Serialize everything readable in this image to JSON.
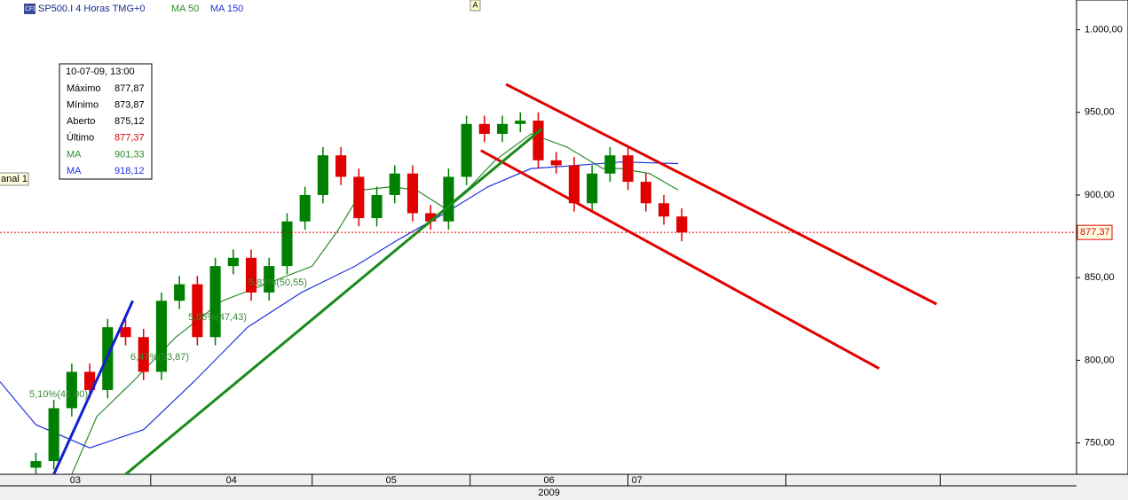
{
  "chart_data": {
    "type": "candlestick",
    "logo": "CFD",
    "title": "SP500.I 4 Horas TMG+0",
    "marker": "A",
    "channel_label": "anal 1",
    "up_color": "#008000",
    "down_color": "#e00000",
    "x": [
      10,
      15,
      20,
      25,
      30,
      35,
      40,
      45,
      50,
      55,
      60,
      65,
      70,
      75,
      80,
      85,
      90,
      95,
      100,
      105,
      110,
      115,
      120,
      125,
      130,
      135,
      140,
      145,
      150,
      155,
      160,
      165,
      170,
      175,
      180,
      185,
      190
    ],
    "open": [
      735,
      739,
      771,
      793,
      782,
      820,
      814,
      793,
      836,
      846,
      814,
      857,
      862,
      841,
      857,
      884,
      900,
      924,
      911,
      886,
      900,
      913,
      889,
      884,
      911,
      943,
      937,
      943,
      945,
      921,
      918,
      895,
      913,
      924,
      908,
      895,
      887
    ],
    "high": [
      744,
      776,
      798,
      798,
      825,
      825,
      819,
      841,
      851,
      851,
      862,
      867,
      867,
      862,
      889,
      905,
      929,
      929,
      916,
      905,
      918,
      918,
      894,
      916,
      948,
      948,
      948,
      950,
      950,
      926,
      923,
      918,
      929,
      929,
      913,
      900,
      892
    ],
    "low": [
      730,
      734,
      766,
      777,
      777,
      809,
      788,
      788,
      831,
      809,
      809,
      852,
      836,
      836,
      852,
      879,
      895,
      906,
      881,
      881,
      895,
      884,
      879,
      879,
      906,
      932,
      932,
      938,
      916,
      913,
      890,
      890,
      908,
      903,
      890,
      882,
      872
    ],
    "close": [
      739,
      771,
      793,
      782,
      820,
      814,
      793,
      836,
      846,
      814,
      857,
      862,
      841,
      857,
      884,
      900,
      924,
      911,
      886,
      900,
      913,
      889,
      884,
      911,
      943,
      937,
      943,
      945,
      921,
      918,
      895,
      913,
      924,
      908,
      895,
      887,
      877.37
    ],
    "moving_averages": [
      {
        "name": "MA 50",
        "color": "#2e8b2e",
        "x": [
          20,
          27,
          37,
          49,
          62,
          74,
          87,
          94,
          101,
          109,
          116,
          124,
          131,
          138,
          148,
          158,
          168,
          173,
          181,
          189
        ],
        "values": [
          731,
          766,
          787,
          814,
          836,
          846,
          857,
          878,
          903,
          905,
          903,
          892,
          905,
          921,
          937,
          929,
          916,
          916,
          913,
          903
        ]
      },
      {
        "name": "MA 150",
        "color": "#2233dd",
        "x": [
          0,
          10,
          25,
          40,
          54,
          69,
          84,
          99,
          111,
          124,
          136,
          148,
          161,
          173,
          189
        ],
        "values": [
          787,
          761,
          747,
          758,
          787,
          820,
          841,
          857,
          873,
          889,
          905,
          916,
          918,
          920,
          919
        ]
      }
    ],
    "trendlines": [
      {
        "color": "#e00000",
        "x": [
          141,
          261
        ],
        "values": [
          967,
          834
        ]
      },
      {
        "color": "#e00000",
        "x": [
          134,
          245
        ],
        "values": [
          927,
          795
        ]
      },
      {
        "color": "#1a8a1a",
        "x": [
          35,
          151
        ],
        "values": [
          731,
          940
        ]
      },
      {
        "color": "#1020d0",
        "x": [
          15,
          37
        ],
        "values": [
          731,
          836
        ]
      }
    ],
    "annotations": [
      "5,10%(41,00)",
      "6,47%(53,87)",
      "5,56%(47,43)",
      "5,83%(50,55)"
    ],
    "last_price": {
      "value": 877.37,
      "label": "877,37"
    },
    "xlim": [
      0,
      300
    ],
    "ylim": [
      731,
      1018
    ],
    "yticks": [
      {
        "value": 750,
        "label": "750,00"
      },
      {
        "value": 800,
        "label": "800,00"
      },
      {
        "value": 850,
        "label": "850,00"
      },
      {
        "value": 900,
        "label": "900,00"
      },
      {
        "value": 950,
        "label": "950,00"
      },
      {
        "value": 1000,
        "label": "1.000,00"
      }
    ],
    "xticks": [
      {
        "value": 21,
        "label": "03"
      },
      {
        "value": 64.5,
        "label": "04"
      },
      {
        "value": 109,
        "label": "05"
      },
      {
        "value": 153,
        "label": "06"
      },
      {
        "value": 177.5,
        "label": "07"
      }
    ],
    "x_separators": [
      42,
      87,
      131,
      175,
      219,
      262
    ],
    "x_group": {
      "value": 153,
      "label": "2009"
    },
    "info_box": {
      "title": "10-07-09, 13:00",
      "rows": [
        [
          "Máximo",
          "877,87"
        ],
        [
          "Mínimo",
          "873,87"
        ],
        [
          "Aberto",
          "875,12"
        ],
        [
          "Último",
          "877,37"
        ],
        [
          "MA",
          "901,33"
        ],
        [
          "MA",
          "918,12"
        ]
      ],
      "value_colors": [
        "#000000",
        "#000000",
        "#000000",
        "#e00000",
        "#2e8b2e",
        "#2233dd"
      ]
    }
  }
}
